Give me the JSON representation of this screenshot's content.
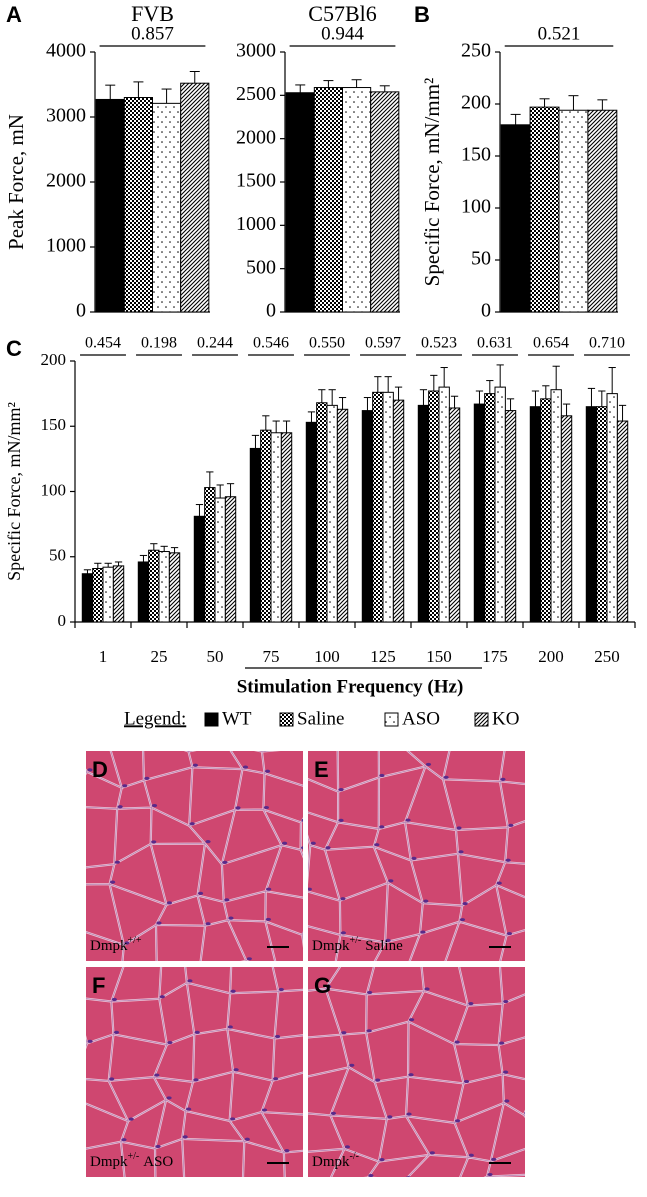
{
  "panel_labels": [
    "A",
    "B",
    "C"
  ],
  "legend": {
    "title": "Legend:"
  },
  "chart_data": [
    {
      "type": "bar",
      "title": "FVB",
      "y_label": "Peak Force, mN",
      "categories": [
        null
      ],
      "annotations": [
        "0.857"
      ],
      "ylim": [
        0,
        4000
      ],
      "yticks": [
        0,
        1000,
        2000,
        3000,
        4000
      ],
      "series": [
        {
          "name": "WT",
          "color": "#000000",
          "pattern": "solid",
          "values": [
            3270
          ],
          "errors": [
            220
          ]
        },
        {
          "name": "Saline",
          "color": "#000000",
          "pattern": "checker",
          "values": [
            3300
          ],
          "errors": [
            240
          ]
        },
        {
          "name": "ASO",
          "color": "#000000",
          "pattern": "dots",
          "values": [
            3210
          ],
          "errors": [
            220
          ]
        },
        {
          "name": "KO",
          "color": "#000000",
          "pattern": "stripes",
          "values": [
            3520
          ],
          "errors": [
            180
          ]
        }
      ]
    },
    {
      "type": "bar",
      "title": "C57Bl6",
      "categories": [
        null
      ],
      "annotations": [
        "0.944"
      ],
      "ylim": [
        0,
        3000
      ],
      "yticks": [
        0,
        500,
        1000,
        1500,
        2000,
        2500,
        3000
      ],
      "series": [
        {
          "name": "WT",
          "color": "#000000",
          "pattern": "solid",
          "values": [
            2530
          ],
          "errors": [
            90
          ]
        },
        {
          "name": "Saline",
          "color": "#000000",
          "pattern": "checker",
          "values": [
            2590
          ],
          "errors": [
            80
          ]
        },
        {
          "name": "ASO",
          "color": "#000000",
          "pattern": "dots",
          "values": [
            2590
          ],
          "errors": [
            90
          ]
        },
        {
          "name": "KO",
          "color": "#000000",
          "pattern": "stripes",
          "values": [
            2540
          ],
          "errors": [
            70
          ]
        }
      ]
    },
    {
      "type": "bar",
      "y_label": "Specific Force, mN/mm²",
      "categories": [
        null
      ],
      "annotations": [
        "0.521"
      ],
      "ylim": [
        0,
        250
      ],
      "yticks": [
        0,
        50,
        100,
        150,
        200,
        250
      ],
      "series": [
        {
          "name": "WT",
          "color": "#000000",
          "pattern": "solid",
          "values": [
            180
          ],
          "errors": [
            10
          ]
        },
        {
          "name": "Saline",
          "color": "#000000",
          "pattern": "checker",
          "values": [
            197
          ],
          "errors": [
            8
          ]
        },
        {
          "name": "ASO",
          "color": "#000000",
          "pattern": "dots",
          "values": [
            194
          ],
          "errors": [
            14
          ]
        },
        {
          "name": "KO",
          "color": "#000000",
          "pattern": "stripes",
          "values": [
            194
          ],
          "errors": [
            10
          ]
        }
      ]
    },
    {
      "type": "bar",
      "y_label": "Specific Force, mN/mm²",
      "x_label": "Stimulation Frequency (Hz)",
      "categories": [
        "1",
        "25",
        "50",
        "75",
        "100",
        "125",
        "150",
        "175",
        "200",
        "250"
      ],
      "annotations": [
        "0.454",
        "0.198",
        "0.244",
        "0.546",
        "0.550",
        "0.597",
        "0.523",
        "0.631",
        "0.654",
        "0.710"
      ],
      "ylim": [
        0,
        200
      ],
      "yticks": [
        0,
        50,
        100,
        150,
        200
      ],
      "series": [
        {
          "name": "WT",
          "color": "#000000",
          "pattern": "solid",
          "values": [
            37,
            46,
            81,
            133,
            153,
            162,
            166,
            167,
            165,
            165
          ],
          "errors": [
            3,
            5,
            9,
            10,
            8,
            10,
            12,
            10,
            12,
            14
          ]
        },
        {
          "name": "Saline",
          "color": "#000000",
          "pattern": "checker",
          "values": [
            41,
            55,
            103,
            147,
            168,
            176,
            177,
            175,
            171,
            165
          ],
          "errors": [
            4,
            5,
            12,
            11,
            10,
            12,
            12,
            10,
            10,
            12
          ]
        },
        {
          "name": "ASO",
          "color": "#000000",
          "pattern": "dots",
          "values": [
            42,
            54,
            95,
            145,
            166,
            176,
            180,
            180,
            178,
            175
          ],
          "errors": [
            3,
            4,
            10,
            9,
            12,
            12,
            15,
            17,
            18,
            20
          ]
        },
        {
          "name": "KO",
          "color": "#000000",
          "pattern": "stripes",
          "values": [
            43,
            53,
            96,
            145,
            163,
            170,
            164,
            162,
            158,
            154
          ],
          "errors": [
            3,
            4,
            10,
            9,
            9,
            10,
            9,
            9,
            9,
            12
          ]
        }
      ]
    }
  ],
  "histology": [
    {
      "label": "D",
      "caption": "Dmpk",
      "superscript": "+/+"
    },
    {
      "label": "E",
      "caption": "Dmpk",
      "superscript": "+/-",
      "suffix": "Saline"
    },
    {
      "label": "F",
      "caption": "Dmpk",
      "superscript": "+/-",
      "suffix": "ASO"
    },
    {
      "label": "G",
      "caption": "Dmpk",
      "superscript": "-/-"
    }
  ]
}
